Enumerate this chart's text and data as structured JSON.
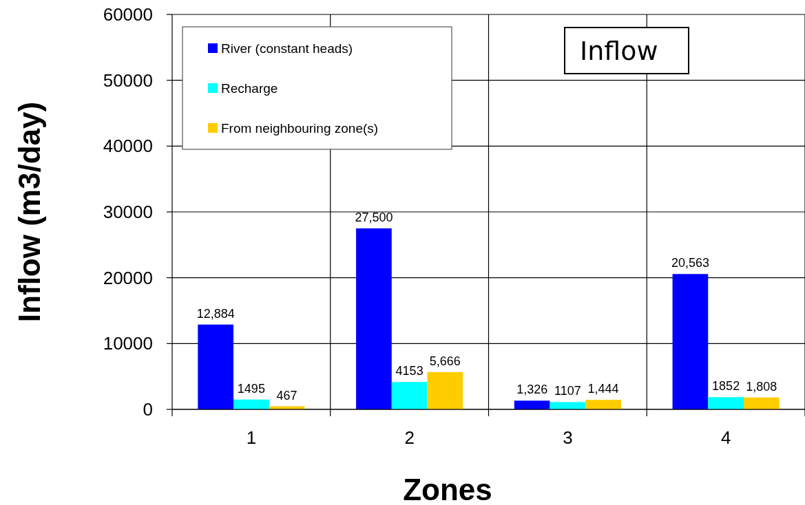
{
  "chart_data": {
    "type": "bar",
    "title": "Inflow",
    "xlabel": "Zones",
    "ylabel": "Inflow (m3/day)",
    "categories": [
      "1",
      "2",
      "3",
      "4"
    ],
    "series": [
      {
        "name": "River (constant heads)",
        "color": "#0000ff",
        "values": [
          12884,
          27500,
          1326,
          20563
        ],
        "value_labels": [
          "12,884",
          "27,500",
          "1,326",
          "20,563"
        ]
      },
      {
        "name": "Recharge",
        "color": "#00ffff",
        "values": [
          1495,
          4153,
          1107,
          1852
        ],
        "value_labels": [
          "1495",
          "4153",
          "1107",
          "1852"
        ]
      },
      {
        "name": "From neighbouring zone(s)",
        "color": "#ffcc00",
        "values": [
          467,
          5666,
          1444,
          1808
        ],
        "value_labels": [
          "467",
          "5,666",
          "1,444",
          "1,808"
        ]
      }
    ],
    "ylim": [
      0,
      60000
    ],
    "yticks": [
      0,
      10000,
      20000,
      30000,
      40000,
      50000,
      60000
    ],
    "grid": true,
    "legend": "top left"
  }
}
